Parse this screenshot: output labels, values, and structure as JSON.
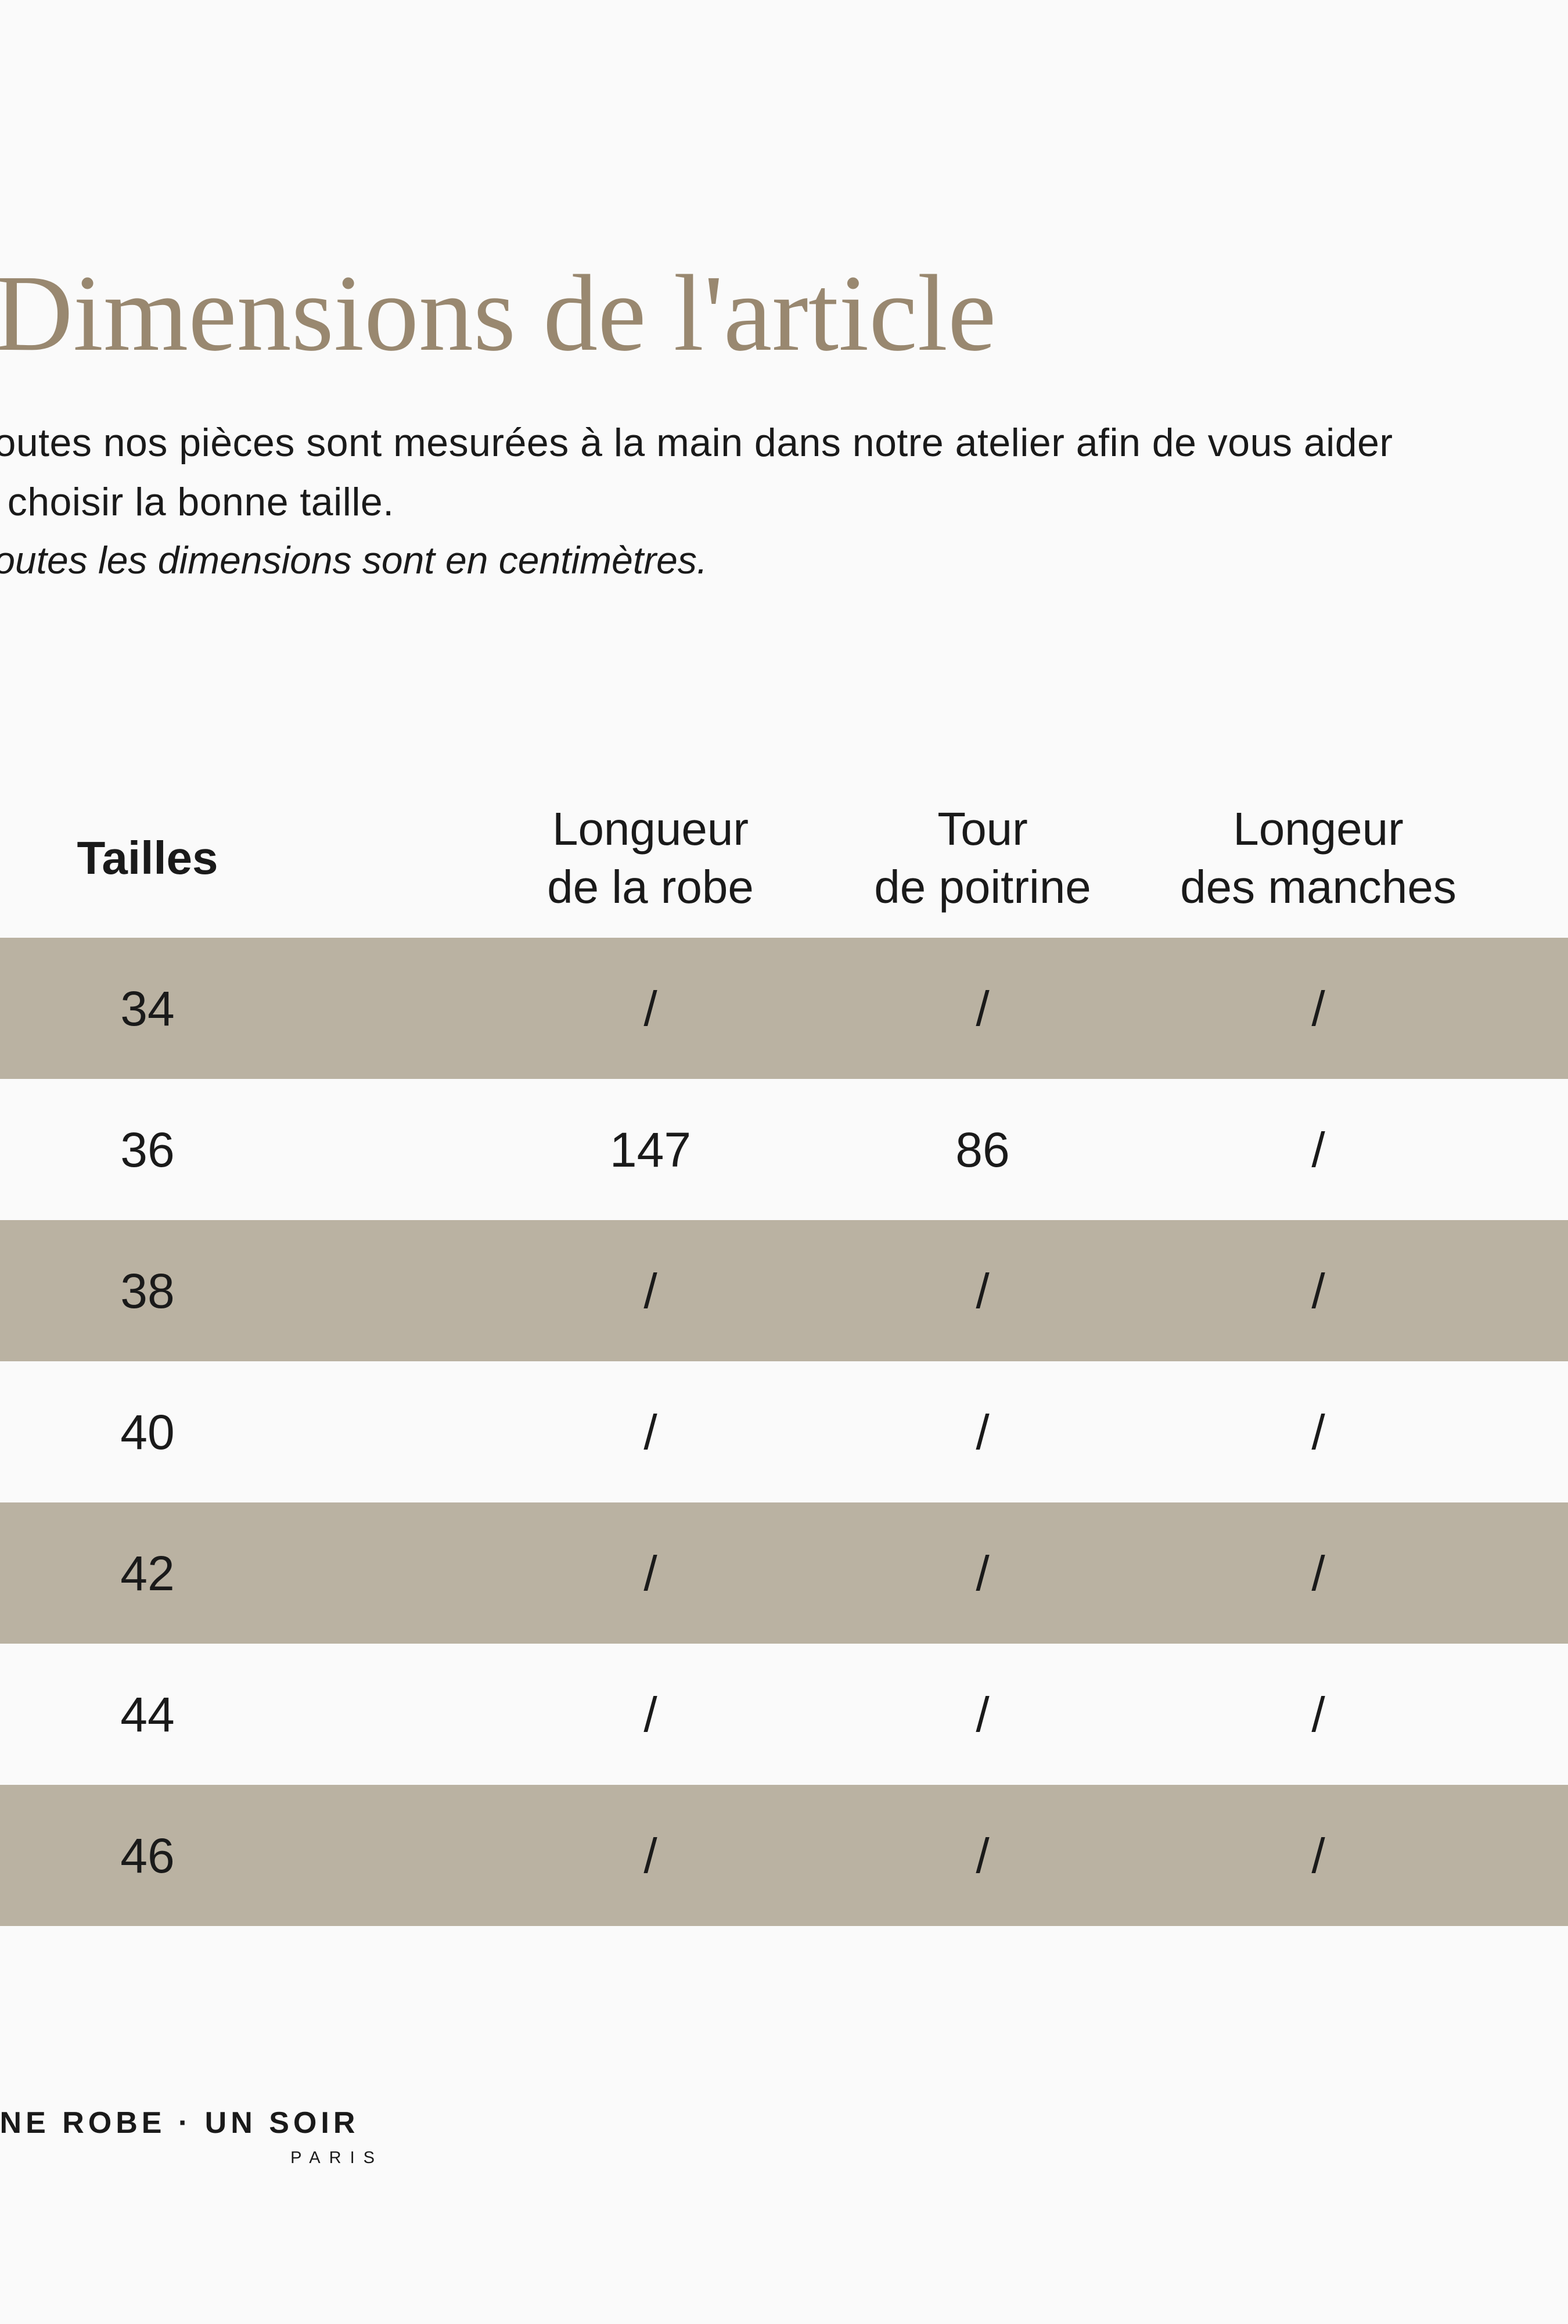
{
  "page": {
    "background_color": "#fafafa",
    "stripe_color": "#bab2a2",
    "title_color": "#998870",
    "text_color": "#1a1a1a"
  },
  "title": "Dimensions de l'article",
  "intro": {
    "line1": "Toutes nos pièces sont mesurées à la main dans notre atelier afin de vous aider",
    "line2": "à choisir la bonne taille.",
    "note": "Toutes les dimensions sont en centimètres."
  },
  "table": {
    "columns": [
      {
        "lines": [
          "Tailles"
        ]
      },
      {
        "lines": [
          "Longueur",
          "de la robe"
        ]
      },
      {
        "lines": [
          "Tour",
          "de poitrine"
        ]
      },
      {
        "lines": [
          "Longeur",
          "des manches"
        ]
      }
    ],
    "rows": [
      {
        "size": "34",
        "values": [
          "/",
          "/",
          "/"
        ]
      },
      {
        "size": "36",
        "values": [
          "147",
          "86",
          "/"
        ]
      },
      {
        "size": "38",
        "values": [
          "/",
          "/",
          "/"
        ]
      },
      {
        "size": "40",
        "values": [
          "/",
          "/",
          "/"
        ]
      },
      {
        "size": "42",
        "values": [
          "/",
          "/",
          "/"
        ]
      },
      {
        "size": "44",
        "values": [
          "/",
          "/",
          "/"
        ]
      },
      {
        "size": "46",
        "values": [
          "/",
          "/",
          "/"
        ]
      }
    ]
  },
  "footer": {
    "brand": "UNE ROBE · UN SOIR",
    "city": "PARIS"
  }
}
